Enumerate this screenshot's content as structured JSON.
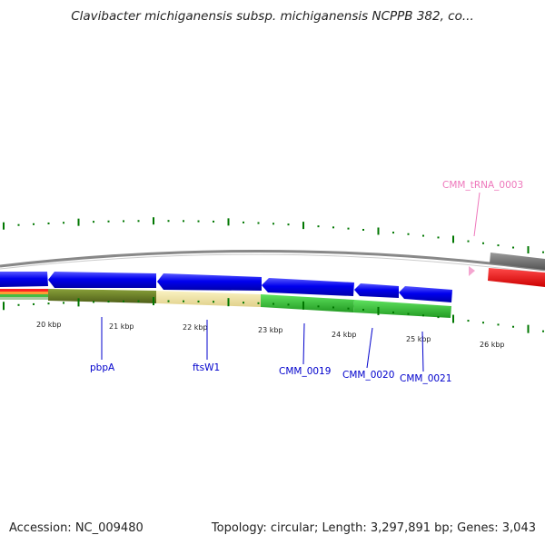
{
  "title": "Clavibacter michiganensis subsp. michiganensis NCPPB 382, co...",
  "footer": {
    "accession": "Accession: NC_009480",
    "summary": "Topology: circular; Length: 3,297,891 bp; Genes: 3,043"
  },
  "colors": {
    "cds": "#0000ee",
    "trna": "#ff0000",
    "gc_tick": "#007700",
    "backbone": "#888888",
    "label_blue": "#0000cc",
    "label_pink": "#ee77bb",
    "cog_olive": "#6b7f26",
    "cog_yellow": "#efe39e",
    "cog_green": "#36c336"
  },
  "ruler": {
    "labels": [
      "20 kbp",
      "21 kbp",
      "22 kbp",
      "23 kbp",
      "24 kbp",
      "25 kbp",
      "26 kbp"
    ]
  },
  "genes": {
    "pbpA": "pbpA",
    "ftsW1": "ftsW1",
    "cmm0019": "CMM_0019",
    "cmm0020": "CMM_0020",
    "cmm0021": "CMM_0021",
    "trna": "CMM_tRNA_0003"
  }
}
